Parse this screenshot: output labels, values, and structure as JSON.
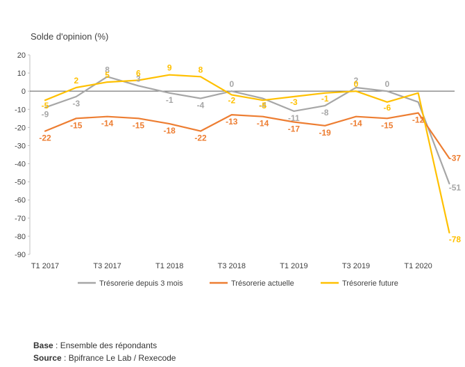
{
  "chart_data": {
    "type": "line",
    "ylabel": "Solde d'opinion (%)",
    "ylim": [
      -90,
      20
    ],
    "yticks": [
      20,
      10,
      0,
      -10,
      -20,
      -30,
      -40,
      -50,
      -60,
      -70,
      -80,
      -90
    ],
    "xtick_labels": [
      "T1 2017",
      "T3 2017",
      "T1 2018",
      "T3 2018",
      "T1 2019",
      "T3 2019",
      "T1 2020"
    ],
    "x": [
      "T1 2017",
      "T2 2017",
      "T3 2017",
      "T4 2017",
      "T1 2018",
      "T2 2018",
      "T3 2018",
      "T4 2018",
      "T1 2019",
      "T2 2019",
      "T3 2019",
      "T4 2019",
      "T1 2020",
      "T2 2020"
    ],
    "grid": false,
    "legend_position": "bottom",
    "series": [
      {
        "name": "Trésorerie depuis 3 mois",
        "color": "#a6a6a6",
        "values": [
          -9,
          -3,
          8,
          3,
          -1,
          -4,
          0,
          -4,
          -11,
          -8,
          2,
          0,
          -6,
          -51
        ],
        "labels": [
          "-9",
          "-3",
          "8",
          "3",
          "-1",
          "-4",
          "0",
          "-4",
          "-11",
          "-8",
          "2",
          "0",
          "",
          "-51"
        ]
      },
      {
        "name": "Trésorerie actuelle",
        "color": "#ed7d31",
        "values": [
          -22,
          -15,
          -14,
          -15,
          -18,
          -22,
          -13,
          -14,
          -17,
          -19,
          -14,
          -15,
          -12,
          -37
        ],
        "labels": [
          "-22",
          "-15",
          "-14",
          "-15",
          "-18",
          "-22",
          "-13",
          "-14",
          "-17",
          "-19",
          "-14",
          "-15",
          "-12",
          "-37"
        ]
      },
      {
        "name": "Trésorerie future",
        "color": "#ffc000",
        "values": [
          -5,
          2,
          5,
          6,
          9,
          8,
          -2,
          -5,
          -3,
          -1,
          0,
          -6,
          -1,
          -78
        ],
        "labels": [
          "-5",
          "2",
          "5",
          "6",
          "9",
          "8",
          "-2",
          "-5",
          "-3",
          "-1",
          "0",
          "-6",
          "",
          "-78"
        ]
      }
    ]
  },
  "footer": {
    "base_label": "Base",
    "base_text": " : Ensemble des répondants",
    "source_label": "Source",
    "source_text": " : Bpifrance Le Lab / Rexecode"
  }
}
